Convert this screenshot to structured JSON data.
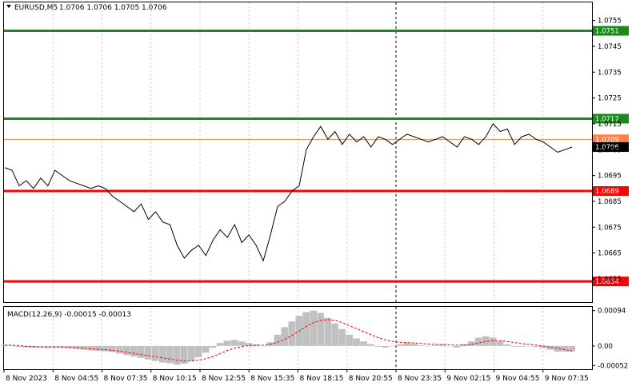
{
  "header": {
    "symbol": "EURUSD,M5",
    "ohlc": "1.0706 1.0706 1.0705 1.0706"
  },
  "macd_label": "MACD(12,26,9) -0.00015 -0.00013",
  "colors": {
    "price_line": "#000000",
    "green_level": "#1a8a1a",
    "red_level": "#ff0000",
    "orange_level": "#ff8040",
    "current_tag": "#000000",
    "grid": "#c8c8c8",
    "histogram": "#c0c0c0",
    "signal": "#ff0000"
  },
  "chart_data": [
    {
      "type": "line",
      "title": "EURUSD,M5",
      "ylim": [
        1.0646,
        1.0762
      ],
      "y_ticks": [
        "1.0755",
        "1.0745",
        "1.0735",
        "1.0725",
        "1.0715",
        "1.0705",
        "1.0695",
        "1.0685",
        "1.0675",
        "1.0665",
        "1.0655"
      ],
      "x_ticks": [
        "8 Nov 2023",
        "8 Nov 04:55",
        "8 Nov 07:35",
        "8 Nov 10:15",
        "8 Nov 12:55",
        "8 Nov 15:35",
        "8 Nov 18:15",
        "8 Nov 20:55",
        "8 Nov 23:35",
        "9 Nov 02:15",
        "9 Nov 04:55",
        "9 Nov 07:35"
      ],
      "horizontal_levels": [
        {
          "value": 1.0751,
          "label": "1.0751",
          "color": "green"
        },
        {
          "value": 1.0717,
          "label": "1.0717",
          "color": "green"
        },
        {
          "value": 1.0709,
          "label": "1.0709",
          "color": "orange"
        },
        {
          "value": 1.0689,
          "label": "1.0689",
          "color": "red"
        },
        {
          "value": 1.0654,
          "label": "1.0654",
          "color": "red"
        }
      ],
      "current_price": "1.0706",
      "vertical_marker_index": 8,
      "series": [
        {
          "values": [
            1.0698,
            1.0697,
            1.0691,
            1.0693,
            1.069,
            1.0694,
            1.0691,
            1.0697,
            1.0695,
            1.0693,
            1.0692,
            1.0691,
            1.069,
            1.0691,
            1.069,
            1.0687,
            1.0685,
            1.0683,
            1.0681,
            1.0684,
            1.0678,
            1.0681,
            1.0677,
            1.0676,
            1.0668,
            1.0663,
            1.0666,
            1.0668,
            1.0664,
            1.067,
            1.0674,
            1.0671,
            1.0676,
            1.0669,
            1.0672,
            1.0668,
            1.0662,
            1.0672,
            1.0683,
            1.0685,
            1.0689,
            1.0691,
            1.0705,
            1.071,
            1.0714,
            1.0709,
            1.0712,
            1.0707,
            1.0711,
            1.0708,
            1.071,
            1.0706,
            1.071,
            1.0709,
            1.0707,
            1.0709,
            1.0711,
            1.071,
            1.0709,
            1.0708,
            1.0709,
            1.071,
            1.0708,
            1.0706,
            1.071,
            1.0709,
            1.0707,
            1.071,
            1.0715,
            1.0712,
            1.0713,
            1.0707,
            1.071,
            1.0711,
            1.0709,
            1.0708,
            1.0706,
            1.0704,
            1.0705,
            1.0706
          ]
        }
      ]
    },
    {
      "type": "bar",
      "title": "MACD(12,26,9) -0.00015 -0.00013",
      "ylim": [
        -0.00062,
        0.00104
      ],
      "y_ticks": [
        "0.00094",
        "0.00",
        "-0.00052"
      ],
      "series": [
        {
          "name": "MACD",
          "values": [
            3e-05,
            2e-05,
            -2e-05,
            -4e-05,
            -5e-05,
            -3e-05,
            -4e-05,
            -3e-05,
            -4e-05,
            -6e-05,
            -8e-05,
            -0.0001,
            -0.00012,
            -0.00013,
            -0.00014,
            -0.00016,
            -0.0002,
            -0.00024,
            -0.00028,
            -0.00032,
            -0.00036,
            -0.0004,
            -0.00044,
            -0.00046,
            -0.0005,
            -0.00047,
            -0.0004,
            -0.0003,
            -0.00018,
            -5e-05,
            8e-05,
            0.00014,
            0.00016,
            0.00012,
            8e-05,
            4e-05,
            0.0,
            0.0001,
            0.0003,
            0.0005,
            0.00065,
            0.0008,
            0.0009,
            0.00094,
            0.00088,
            0.00075,
            0.0006,
            0.00045,
            0.0003,
            0.0002,
            0.00012,
            5e-05,
            -2e-05,
            -4e-05,
            0.0,
            4e-05,
            8e-05,
            6e-05,
            2e-05,
            0.0,
            2e-05,
            4e-05,
            0.0,
            -4e-05,
            5e-05,
            0.00012,
            0.00022,
            0.00026,
            0.00022,
            0.00012,
            4e-05,
            -2e-05,
            -2e-05,
            0.0,
            -2e-05,
            -6e-05,
            -0.0001,
            -0.00015,
            -0.00015,
            -0.00015
          ]
        },
        {
          "name": "Signal",
          "values": [
            2e-05,
            2e-05,
            1e-05,
            -1e-05,
            -2e-05,
            -3e-05,
            -3e-05,
            -3e-05,
            -3e-05,
            -4e-05,
            -5e-05,
            -6e-05,
            -8e-05,
            -9e-05,
            -0.0001,
            -0.00012,
            -0.00014,
            -0.00017,
            -0.0002,
            -0.00023,
            -0.00026,
            -0.00029,
            -0.00032,
            -0.00035,
            -0.00038,
            -0.0004,
            -0.0004,
            -0.00038,
            -0.00034,
            -0.00028,
            -0.0002,
            -0.00012,
            -6e-05,
            -2e-05,
            1e-05,
            2e-05,
            2e-05,
            4e-05,
            0.0001,
            0.00018,
            0.00028,
            0.0004,
            0.00052,
            0.00062,
            0.00068,
            0.0007,
            0.00068,
            0.00062,
            0.00054,
            0.00046,
            0.00038,
            0.0003,
            0.00022,
            0.00016,
            0.00012,
            0.0001,
            9e-05,
            8e-05,
            7e-05,
            5e-05,
            4e-05,
            4e-05,
            3e-05,
            2e-05,
            2e-05,
            4e-05,
            8e-05,
            0.00012,
            0.00014,
            0.00014,
            0.00012,
            9e-05,
            6e-05,
            4e-05,
            2e-05,
            0.0,
            -3e-05,
            -6e-05,
            -0.0001,
            -0.00013
          ]
        }
      ]
    }
  ]
}
